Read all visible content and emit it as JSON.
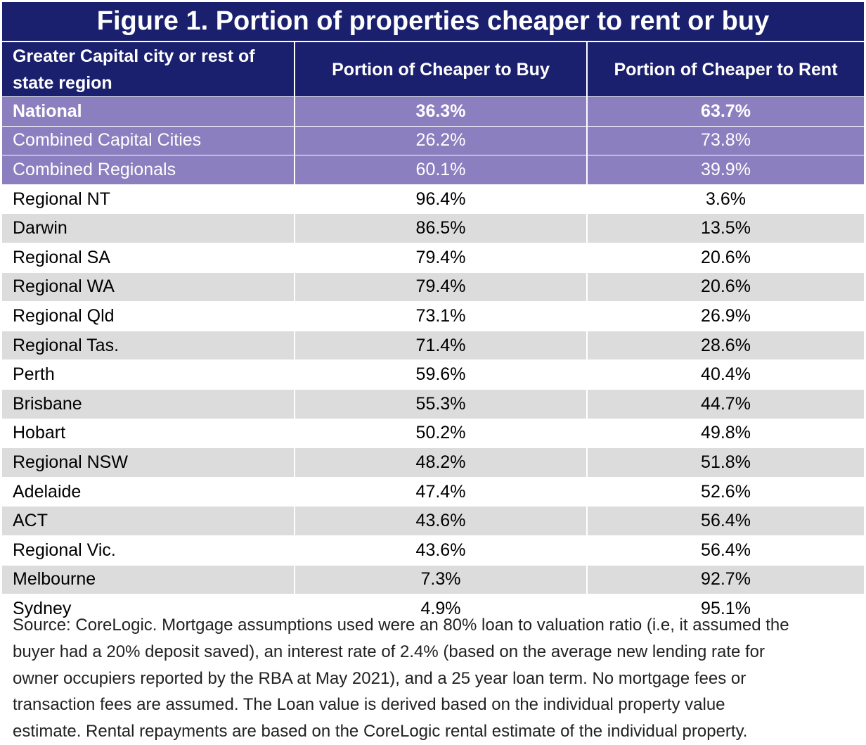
{
  "title": "Figure 1. Portion of properties cheaper to rent or buy",
  "colors": {
    "header_bg": "#1a1f6e",
    "highlight_bg": "#8c7fbf",
    "alt_row_bg": "#dcdcdc",
    "plain_row_bg": "#ffffff"
  },
  "chart_data": {
    "type": "table",
    "title": "Figure 1. Portion of properties cheaper to rent or buy",
    "columns": [
      "Greater Capital city or rest of state region",
      "Portion of Cheaper to Buy",
      "Portion of Cheaper to Rent"
    ],
    "rows": [
      {
        "region": "National",
        "buy": "36.3%",
        "rent": "63.7%",
        "style": "hl strong"
      },
      {
        "region": "Combined Capital Cities",
        "buy": "26.2%",
        "rent": "73.8%",
        "style": "hl"
      },
      {
        "region": "Combined Regionals",
        "buy": "60.1%",
        "rent": "39.9%",
        "style": "hl"
      },
      {
        "region": "Regional NT",
        "buy": "96.4%",
        "rent": "3.6%",
        "style": "plain"
      },
      {
        "region": "Darwin",
        "buy": "86.5%",
        "rent": "13.5%",
        "style": "alt"
      },
      {
        "region": "Regional SA",
        "buy": "79.4%",
        "rent": "20.6%",
        "style": "plain"
      },
      {
        "region": "Regional WA",
        "buy": "79.4%",
        "rent": "20.6%",
        "style": "alt"
      },
      {
        "region": "Regional Qld",
        "buy": "73.1%",
        "rent": "26.9%",
        "style": "plain"
      },
      {
        "region": "Regional Tas.",
        "buy": "71.4%",
        "rent": "28.6%",
        "style": "alt"
      },
      {
        "region": "Perth",
        "buy": "59.6%",
        "rent": "40.4%",
        "style": "plain"
      },
      {
        "region": "Brisbane",
        "buy": "55.3%",
        "rent": "44.7%",
        "style": "alt"
      },
      {
        "region": "Hobart",
        "buy": "50.2%",
        "rent": "49.8%",
        "style": "plain"
      },
      {
        "region": "Regional NSW",
        "buy": "48.2%",
        "rent": "51.8%",
        "style": "alt"
      },
      {
        "region": "Adelaide",
        "buy": "47.4%",
        "rent": "52.6%",
        "style": "plain"
      },
      {
        "region": "ACT",
        "buy": "43.6%",
        "rent": "56.4%",
        "style": "alt"
      },
      {
        "region": "Regional Vic.",
        "buy": "43.6%",
        "rent": "56.4%",
        "style": "plain"
      },
      {
        "region": "Melbourne",
        "buy": "7.3%",
        "rent": "92.7%",
        "style": "alt"
      },
      {
        "region": "Sydney",
        "buy": "4.9%",
        "rent": "95.1%",
        "style": "plain"
      }
    ]
  },
  "source_lines": [
    "Source: CoreLogic. Mortgage assumptions used were an 80% loan to valuation ratio (i.e, it assumed the",
    "buyer had a 20% deposit saved), an interest rate of 2.4% (based on the average new lending rate for",
    "owner occupiers reported by the RBA at May 2021), and a 25 year loan term. No mortgage fees or",
    "transaction fees are assumed. The Loan value is derived based on the individual property value",
    "estimate. Rental repayments are based on the CoreLogic rental estimate of the individual property."
  ]
}
